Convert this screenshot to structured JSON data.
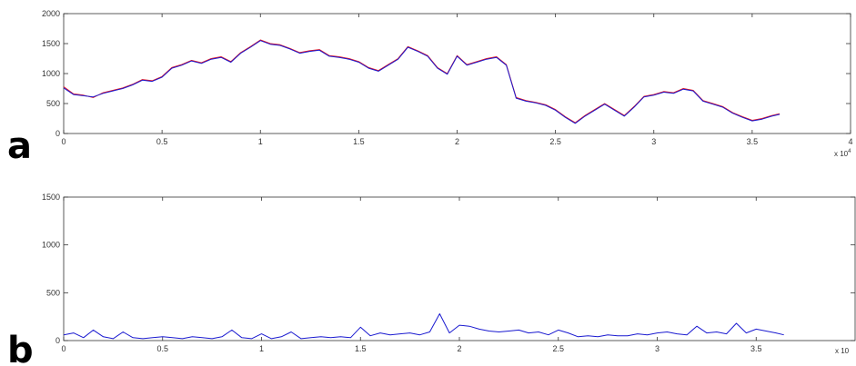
{
  "figure": {
    "panel_a_label": "a",
    "panel_b_label": "b"
  },
  "chart_data": [
    {
      "type": "line",
      "panel": "a",
      "xlim": [
        0,
        40000
      ],
      "ylim": [
        0,
        2000
      ],
      "x_ticks": [
        0,
        5000,
        10000,
        15000,
        20000,
        25000,
        30000,
        35000,
        40000
      ],
      "x_tick_labels": [
        "0",
        "0.5",
        "1",
        "1.5",
        "2",
        "2.5",
        "3",
        "3.5",
        "4"
      ],
      "y_ticks": [
        0,
        500,
        1000,
        1500,
        2000
      ],
      "y_tick_labels": [
        "0",
        "500",
        "1000",
        "1500",
        "2000"
      ],
      "x_multiplier_label": "x 10",
      "x_multiplier_exp": "4",
      "grid": false,
      "series": [
        {
          "color": "#e8141c",
          "x": [
            0,
            500,
            1000,
            1500,
            2000,
            2500,
            3000,
            3500,
            4000,
            4500,
            5000,
            5500,
            6000,
            6500,
            7000,
            7500,
            8000,
            8500,
            9000,
            9500,
            10000,
            10500,
            11000,
            11500,
            12000,
            12500,
            13000,
            13500,
            14000,
            14500,
            15000,
            15500,
            16000,
            16500,
            17000,
            17500,
            18000,
            18500,
            19000,
            19500,
            20000,
            20500,
            21000,
            21500,
            22000,
            22500,
            23000,
            23500,
            24000,
            24500,
            25000,
            25500,
            26000,
            26500,
            27000,
            27500,
            28000,
            28500,
            29000,
            29500,
            30000,
            30500,
            31000,
            31500,
            32000,
            32500,
            33000,
            33500,
            34000,
            34500,
            35000,
            35500,
            36000,
            36400
          ],
          "y": [
            780,
            660,
            640,
            600,
            680,
            720,
            760,
            820,
            900,
            880,
            950,
            1100,
            1150,
            1220,
            1180,
            1250,
            1280,
            1200,
            1350,
            1450,
            1560,
            1500,
            1480,
            1420,
            1350,
            1380,
            1400,
            1300,
            1280,
            1250,
            1200,
            1100,
            1050,
            1150,
            1250,
            1450,
            1380,
            1300,
            1100,
            1000,
            1300,
            1150,
            1200,
            1250,
            1280,
            1150,
            600,
            550,
            520,
            480,
            400,
            280,
            180,
            300,
            400,
            500,
            400,
            300,
            450,
            620,
            650,
            700,
            680,
            750,
            720,
            550,
            500,
            450,
            350,
            280,
            220,
            250,
            300,
            330
          ]
        },
        {
          "color": "#1a1ad0",
          "x": [
            0,
            500,
            1000,
            1500,
            2000,
            2500,
            3000,
            3500,
            4000,
            4500,
            5000,
            5500,
            6000,
            6500,
            7000,
            7500,
            8000,
            8500,
            9000,
            9500,
            10000,
            10500,
            11000,
            11500,
            12000,
            12500,
            13000,
            13500,
            14000,
            14500,
            15000,
            15500,
            16000,
            16500,
            17000,
            17500,
            18000,
            18500,
            19000,
            19500,
            20000,
            20500,
            21000,
            21500,
            22000,
            22500,
            23000,
            23500,
            24000,
            24500,
            25000,
            25500,
            26000,
            26500,
            27000,
            27500,
            28000,
            28500,
            29000,
            29500,
            30000,
            30500,
            31000,
            31500,
            32000,
            32500,
            33000,
            33500,
            34000,
            34500,
            35000,
            35500,
            36000,
            36400
          ],
          "y": [
            760,
            650,
            630,
            610,
            670,
            710,
            750,
            810,
            890,
            870,
            940,
            1090,
            1140,
            1210,
            1170,
            1240,
            1270,
            1190,
            1340,
            1440,
            1550,
            1490,
            1470,
            1410,
            1340,
            1370,
            1390,
            1290,
            1270,
            1240,
            1190,
            1090,
            1040,
            1140,
            1240,
            1440,
            1370,
            1290,
            1090,
            990,
            1290,
            1140,
            1190,
            1240,
            1270,
            1140,
            590,
            540,
            510,
            470,
            390,
            270,
            170,
            290,
            390,
            490,
            390,
            290,
            440,
            610,
            640,
            690,
            670,
            740,
            710,
            540,
            490,
            440,
            340,
            270,
            210,
            240,
            290,
            320
          ]
        }
      ]
    },
    {
      "type": "line",
      "panel": "b",
      "xlim": [
        0,
        40000
      ],
      "ylim": [
        0,
        1500
      ],
      "x_ticks": [
        0,
        5000,
        10000,
        15000,
        20000,
        25000,
        30000,
        35000
      ],
      "x_tick_labels": [
        "0",
        "0.5",
        "1",
        "1.5",
        "2",
        "2.5",
        "3",
        "3.5"
      ],
      "y_ticks": [
        0,
        500,
        1000,
        1500
      ],
      "y_tick_labels": [
        "0",
        "500",
        "1000",
        "1500"
      ],
      "x_multiplier_label": "x 10",
      "grid": false,
      "series": [
        {
          "color": "#1a1ad0",
          "x": [
            0,
            500,
            1000,
            1500,
            2000,
            2500,
            3000,
            3500,
            4000,
            4500,
            5000,
            5500,
            6000,
            6500,
            7000,
            7500,
            8000,
            8500,
            9000,
            9500,
            10000,
            10500,
            11000,
            11500,
            12000,
            12500,
            13000,
            13500,
            14000,
            14500,
            15000,
            15500,
            16000,
            16500,
            17000,
            17500,
            18000,
            18500,
            19000,
            19500,
            20000,
            20500,
            21000,
            21500,
            22000,
            22500,
            23000,
            23500,
            24000,
            24500,
            25000,
            25500,
            26000,
            26500,
            27000,
            27500,
            28000,
            28500,
            29000,
            29500,
            30000,
            30500,
            31000,
            31500,
            32000,
            32500,
            33000,
            33500,
            34000,
            34500,
            35000,
            35500,
            36000,
            36400
          ],
          "y": [
            60,
            80,
            30,
            110,
            40,
            20,
            90,
            30,
            20,
            30,
            40,
            30,
            20,
            40,
            30,
            20,
            40,
            110,
            30,
            20,
            70,
            20,
            40,
            90,
            20,
            30,
            40,
            30,
            40,
            30,
            140,
            50,
            80,
            60,
            70,
            80,
            60,
            90,
            280,
            80,
            160,
            150,
            120,
            100,
            90,
            100,
            110,
            80,
            90,
            60,
            110,
            80,
            40,
            50,
            40,
            60,
            50,
            50,
            70,
            60,
            80,
            90,
            70,
            60,
            150,
            80,
            90,
            70,
            180,
            80,
            120,
            100,
            80,
            60
          ]
        }
      ]
    }
  ]
}
